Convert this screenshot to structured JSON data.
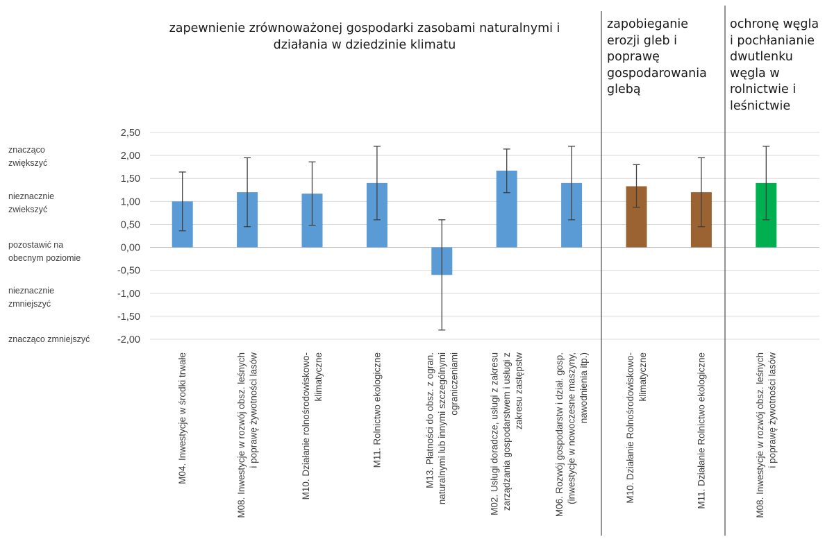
{
  "chart_data": {
    "type": "bar",
    "ylim": [
      -2.0,
      2.5
    ],
    "yticks": [
      "2,50",
      "2,00",
      "1,50",
      "1,00",
      "0,50",
      "0,00",
      "-0,50",
      "-1,00",
      "-1,50",
      "-2,00"
    ],
    "grid": true,
    "groups": [
      {
        "title": "zapewnienie zrównoważonej gospodarki zasobami naturalnymi i działania w dziedzinie klimatu",
        "color": "#5b9bd5",
        "categories": [
          [
            "M04. Inwestycje w środki trwałe"
          ],
          [
            "M08. Inwestycje w rozwój obsz. leśnych",
            "i poprawę żywotności lasów"
          ],
          [
            "M10. Działanie rolnośrodowiskowo-",
            "klimatyczne"
          ],
          [
            "M11. Rolnictwo ekologiczne"
          ],
          [
            "M13. Płatności do obsz. z ogran.",
            "naturalnymi lub innymi szczególnymi",
            "ograniczeniami"
          ],
          [
            "M02. Usługi doradcze, usługi z zakresu",
            "zarządzania gospodarstwem i usługi z",
            "zakresu zastępstw"
          ],
          [
            "M06. Rozwój gospodarstw i dział. gosp.",
            "(inwestycje w nowoczesne maszyny,",
            "nawodnienia itp.)"
          ]
        ],
        "values": [
          1.0,
          1.2,
          1.17,
          1.4,
          -0.6,
          1.67,
          1.4
        ],
        "error_low": [
          0.36,
          0.45,
          0.48,
          0.6,
          -1.8,
          1.19,
          0.6
        ],
        "error_high": [
          1.64,
          1.95,
          1.86,
          2.2,
          0.6,
          2.14,
          2.2
        ]
      },
      {
        "title": "zapobieganie erozji gleb i poprawę gospodarowania glebą",
        "color": "#9a6331",
        "categories": [
          [
            "M10. Działanie Rolnośrodowiskowo-",
            "klimatyczne"
          ],
          [
            "M11. Działanie Rolnictwo ekologiczne"
          ]
        ],
        "values": [
          1.33,
          1.2
        ],
        "error_low": [
          0.87,
          0.45
        ],
        "error_high": [
          1.8,
          1.95
        ]
      },
      {
        "title": "ochronę węgla i pochłanianie dwutlenku węgla w rolnictwie i leśnictwie",
        "color": "#00b050",
        "categories": [
          [
            "M08. Inwestycje w rozwój obsz. leśnych",
            "i poprawę żywotności lasów"
          ]
        ],
        "values": [
          1.4
        ],
        "error_low": [
          0.6
        ],
        "error_high": [
          2.2
        ]
      }
    ],
    "level_labels": [
      [
        "znacząco",
        "zwiększyć"
      ],
      [
        "nieznacznie",
        "zwiekszyć"
      ],
      [
        "pozostawić na",
        "obecnym poziomie"
      ],
      [
        "nieznacznie",
        "zmniejszyć"
      ],
      [
        "znacząco zmniejszyć"
      ]
    ]
  }
}
